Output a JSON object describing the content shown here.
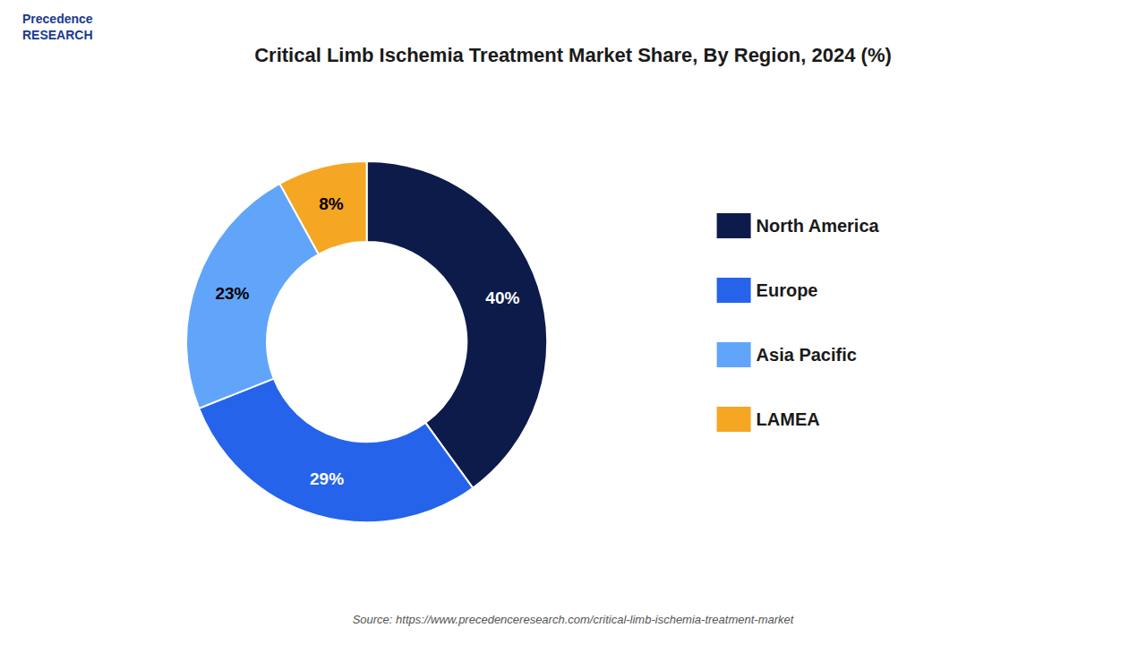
{
  "chart_data": {
    "type": "pie",
    "title": "Critical Limb Ischemia Treatment Market Share, By Region, 2024 (%)",
    "categories": [
      "North America",
      "Europe",
      "Asia Pacific",
      "LAMEA"
    ],
    "values": [
      40,
      29,
      23,
      8
    ],
    "value_labels": [
      "40%",
      "29%",
      "23%",
      "8%"
    ],
    "colors": [
      "#0d1b4b",
      "#2563eb",
      "#60a5fa",
      "#f5a623"
    ],
    "data_labels": true,
    "legend": "right",
    "annotations": [
      "Precedence\nRESEARCH",
      "Source: https://www.precedenceresearch.com/critical-limb-ischemia-treatment-market"
    ]
  }
}
